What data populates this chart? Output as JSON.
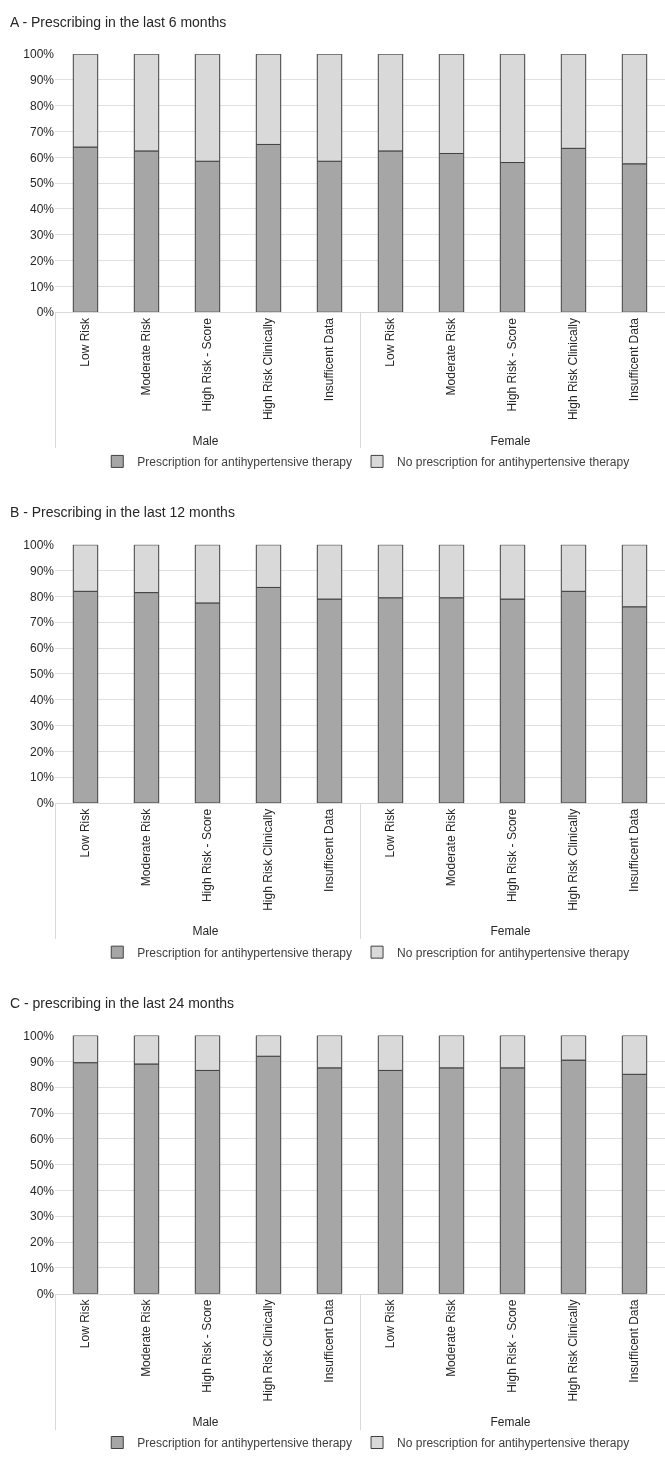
{
  "chart_data": [
    {
      "type": "bar",
      "title": "A - Prescribing in the last 6 months",
      "stacked": true,
      "categories": [
        "Low Risk",
        "Moderate Risk",
        "High Risk - Score",
        "High Risk Clinically",
        "Insufficent Data",
        "Low Risk",
        "Moderate Risk",
        "High Risk - Score",
        "High Risk Clinically",
        "Insufficent Data"
      ],
      "annotations": [
        "Male",
        "Female"
      ],
      "ylim": [
        0,
        100
      ],
      "yticks": [
        {
          "value": 0,
          "label": "0%"
        },
        {
          "value": 10,
          "label": "10%"
        },
        {
          "value": 20,
          "label": "20%"
        },
        {
          "value": 30,
          "label": "30%"
        },
        {
          "value": 40,
          "label": "40%"
        },
        {
          "value": 50,
          "label": "50%"
        },
        {
          "value": 60,
          "label": "60%"
        },
        {
          "value": 70,
          "label": "70%"
        },
        {
          "value": 80,
          "label": "80%"
        },
        {
          "value": 90,
          "label": "90%"
        },
        {
          "value": 100,
          "label": "100%"
        }
      ],
      "grid": "y",
      "legend": "bottom",
      "series": [
        {
          "name": "Prescription for antihypertensive therapy",
          "color": "#a6a6a6",
          "values": [
            64,
            62.5,
            58.5,
            65,
            58.5,
            62.5,
            61.5,
            58,
            63.5,
            57.5
          ]
        },
        {
          "name": "No prescription for antihypertensive therapy",
          "color": "#d9d9d9",
          "values": [
            36,
            37.5,
            41.5,
            35,
            41.5,
            37.5,
            38.5,
            42,
            36.5,
            42.5
          ]
        }
      ]
    },
    {
      "type": "bar",
      "title": "B - Prescribing in the last 12 months",
      "stacked": true,
      "categories": [
        "Low Risk",
        "Moderate Risk",
        "High Risk - Score",
        "High Risk Clinically",
        "Insufficent Data",
        "Low Risk",
        "Moderate Risk",
        "High Risk - Score",
        "High Risk Clinically",
        "Insufficent Data"
      ],
      "annotations": [
        "Male",
        "Female"
      ],
      "ylim": [
        0,
        100
      ],
      "yticks": [
        {
          "value": 0,
          "label": "0%"
        },
        {
          "value": 10,
          "label": "10%"
        },
        {
          "value": 20,
          "label": "20%"
        },
        {
          "value": 30,
          "label": "30%"
        },
        {
          "value": 40,
          "label": "40%"
        },
        {
          "value": 50,
          "label": "50%"
        },
        {
          "value": 60,
          "label": "60%"
        },
        {
          "value": 70,
          "label": "70%"
        },
        {
          "value": 80,
          "label": "80%"
        },
        {
          "value": 90,
          "label": "90%"
        },
        {
          "value": 100,
          "label": "100%"
        }
      ],
      "grid": "y",
      "legend": "bottom",
      "series": [
        {
          "name": "Prescription for antihypertensive therapy",
          "color": "#a6a6a6",
          "values": [
            82,
            81.5,
            77.5,
            83.5,
            79,
            79.5,
            79.5,
            79,
            82,
            76
          ]
        },
        {
          "name": "No prescription for antihypertensive therapy",
          "color": "#d9d9d9",
          "values": [
            18,
            18.5,
            22.5,
            16.5,
            21,
            20.5,
            20.5,
            21,
            18,
            24
          ]
        }
      ]
    },
    {
      "type": "bar",
      "title": "C - prescribing in the last 24 months",
      "stacked": true,
      "categories": [
        "Low Risk",
        "Moderate Risk",
        "High Risk - Score",
        "High Risk Clinically",
        "Insufficent Data",
        "Low Risk",
        "Moderate Risk",
        "High Risk - Score",
        "High Risk Clinically",
        "Insufficent Data"
      ],
      "annotations": [
        "Male",
        "Female"
      ],
      "ylim": [
        0,
        100
      ],
      "yticks": [
        {
          "value": 0,
          "label": "0%"
        },
        {
          "value": 10,
          "label": "10%"
        },
        {
          "value": 20,
          "label": "20%"
        },
        {
          "value": 30,
          "label": "30%"
        },
        {
          "value": 40,
          "label": "40%"
        },
        {
          "value": 50,
          "label": "50%"
        },
        {
          "value": 60,
          "label": "60%"
        },
        {
          "value": 70,
          "label": "70%"
        },
        {
          "value": 80,
          "label": "80%"
        },
        {
          "value": 90,
          "label": "90%"
        },
        {
          "value": 100,
          "label": "100%"
        }
      ],
      "grid": "y",
      "legend": "bottom",
      "series": [
        {
          "name": "Prescription for antihypertensive therapy",
          "color": "#a6a6a6",
          "values": [
            89.5,
            89,
            86.5,
            92,
            87.5,
            86.5,
            87.5,
            87.5,
            90.5,
            85
          ]
        },
        {
          "name": "No prescription for antihypertensive therapy",
          "color": "#d9d9d9",
          "values": [
            10.5,
            11,
            13.5,
            8,
            12.5,
            13.5,
            12.5,
            12.5,
            9.5,
            15
          ]
        }
      ]
    }
  ]
}
